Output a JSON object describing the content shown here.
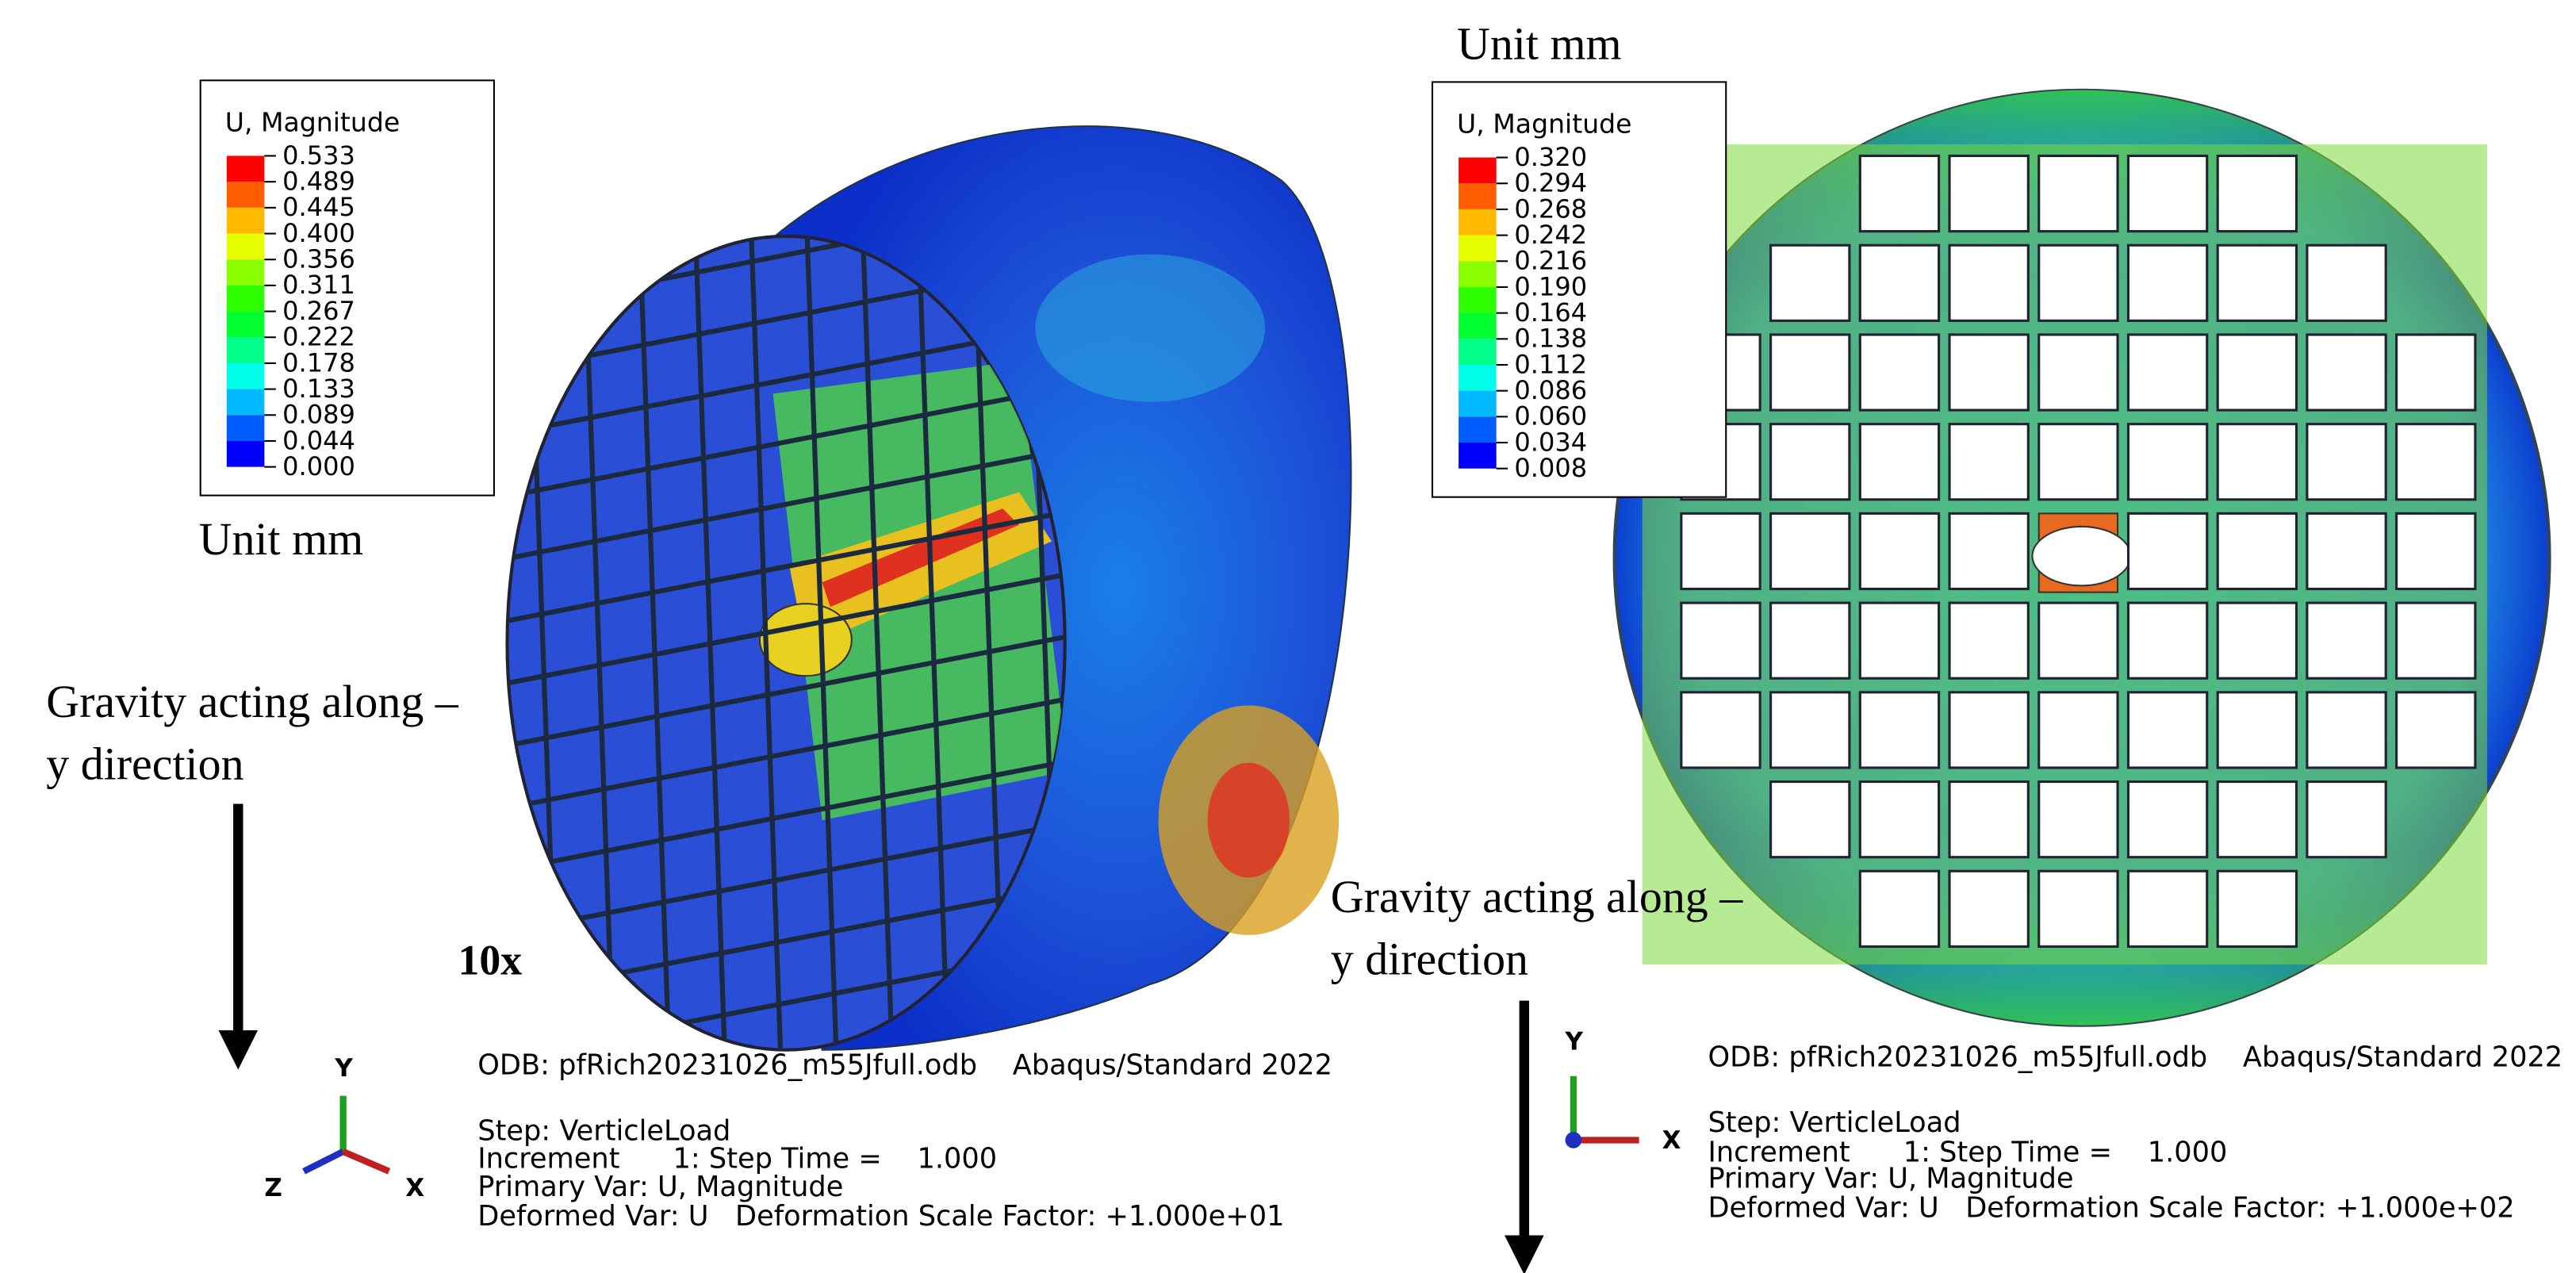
{
  "colormap": [
    "#ff0000",
    "#ff5d00",
    "#ffb900",
    "#e8ff00",
    "#8bff00",
    "#2eff00",
    "#00ff2e",
    "#00ff8b",
    "#00ffe8",
    "#00b9ff",
    "#005dff",
    "#0000ff"
  ],
  "left_panel": {
    "legend": {
      "title": "U, Magnitude",
      "values": [
        "0.533",
        "0.489",
        "0.445",
        "0.400",
        "0.356",
        "0.311",
        "0.267",
        "0.222",
        "0.178",
        "0.133",
        "0.089",
        "0.044",
        "0.000"
      ]
    },
    "unit": "Unit mm",
    "gravity_note": [
      "Gravity acting along –",
      "y direction"
    ],
    "scale_note": "10x",
    "info": [
      "ODB: pfRich20231026_m55Jfull.odb    Abaqus/Standard 2022",
      "Step: VerticleLoad",
      "Increment      1: Step Time =    1.000",
      "Primary Var: U, Magnitude",
      "Deformed Var: U   Deformation Scale Factor: +1.000e+01"
    ],
    "triad": [
      "Y",
      "Z",
      "X"
    ]
  },
  "right_panel": {
    "legend": {
      "title": "U, Magnitude",
      "values": [
        "0.320",
        "0.294",
        "0.268",
        "0.242",
        "0.216",
        "0.190",
        "0.164",
        "0.138",
        "0.112",
        "0.086",
        "0.060",
        "0.034",
        "0.008"
      ]
    },
    "unit": "Unit mm",
    "gravity_note": [
      "Gravity acting along –",
      "y direction"
    ],
    "info": [
      "ODB: pfRich20231026_m55Jfull.odb    Abaqus/Standard 2022",
      "Step: VerticleLoad",
      "Increment      1: Step Time =    1.000",
      "Primary Var: U, Magnitude",
      "Deformed Var: U   Deformation Scale Factor: +1.000e+02"
    ],
    "triad": [
      "Y",
      "X"
    ]
  }
}
